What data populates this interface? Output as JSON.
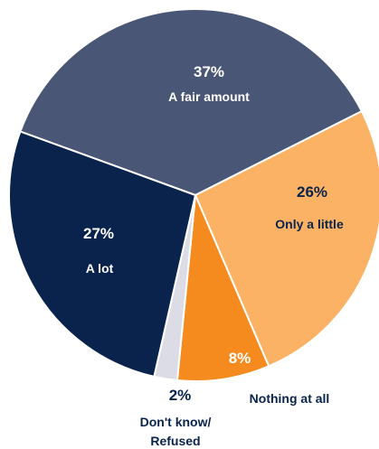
{
  "chart_data": {
    "type": "pie",
    "slices": [
      {
        "label": "A fair amount",
        "value": 37,
        "value_label": "37%",
        "color": "#4a5676"
      },
      {
        "label": "Only a little",
        "value": 26,
        "value_label": "26%",
        "color": "#fbb264"
      },
      {
        "label": "Nothing at all",
        "value": 8,
        "value_label": "8%",
        "color": "#f58a1f"
      },
      {
        "label": "Don't know/ Refused",
        "value": 2,
        "value_label": "2%",
        "color": "#dcdce6"
      },
      {
        "label": "A lot",
        "value": 27,
        "value_label": "27%",
        "color": "#0a234d"
      }
    ]
  }
}
